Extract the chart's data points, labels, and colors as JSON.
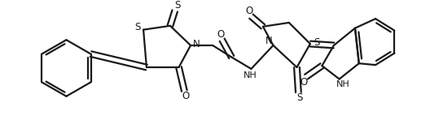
{
  "bg_color": "#ffffff",
  "line_color": "#1a1a1a",
  "line_width": 1.6,
  "figsize": [
    5.28,
    1.69
  ],
  "dpi": 100,
  "xlim": [
    0,
    528
  ],
  "ylim": [
    0,
    169
  ]
}
